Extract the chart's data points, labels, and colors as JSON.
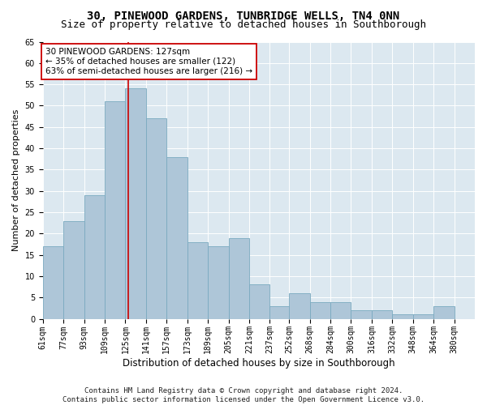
{
  "title": "30, PINEWOOD GARDENS, TUNBRIDGE WELLS, TN4 0NN",
  "subtitle": "Size of property relative to detached houses in Southborough",
  "xlabel": "Distribution of detached houses by size in Southborough",
  "ylabel": "Number of detached properties",
  "footnote1": "Contains HM Land Registry data © Crown copyright and database right 2024.",
  "footnote2": "Contains public sector information licensed under the Open Government Licence v3.0.",
  "bin_edges": [
    61,
    77,
    93,
    109,
    125,
    141,
    157,
    173,
    189,
    205,
    221,
    237,
    252,
    268,
    284,
    300,
    316,
    332,
    348,
    364,
    380
  ],
  "bar_heights": [
    17,
    23,
    29,
    51,
    54,
    47,
    38,
    18,
    17,
    19,
    8,
    3,
    6,
    4,
    4,
    2,
    2,
    1,
    1,
    3
  ],
  "property_size": 127,
  "property_label": "30 PINEWOOD GARDENS: 127sqm",
  "annotation_line1": "← 35% of detached houses are smaller (122)",
  "annotation_line2": "63% of semi-detached houses are larger (216) →",
  "bar_color": "#aec6d8",
  "bar_edge_color": "#7aaac0",
  "vline_color": "#cc0000",
  "annotation_box_edge": "#cc0000",
  "plot_bg_color": "#dce8f0",
  "fig_bg_color": "#ffffff",
  "ylim": [
    0,
    65
  ],
  "yticks": [
    0,
    5,
    10,
    15,
    20,
    25,
    30,
    35,
    40,
    45,
    50,
    55,
    60,
    65
  ],
  "title_fontsize": 10,
  "subtitle_fontsize": 9,
  "ylabel_fontsize": 8,
  "xlabel_fontsize": 8.5,
  "tick_fontsize": 7,
  "annotation_fontsize": 7.5,
  "footnote_fontsize": 6.5
}
